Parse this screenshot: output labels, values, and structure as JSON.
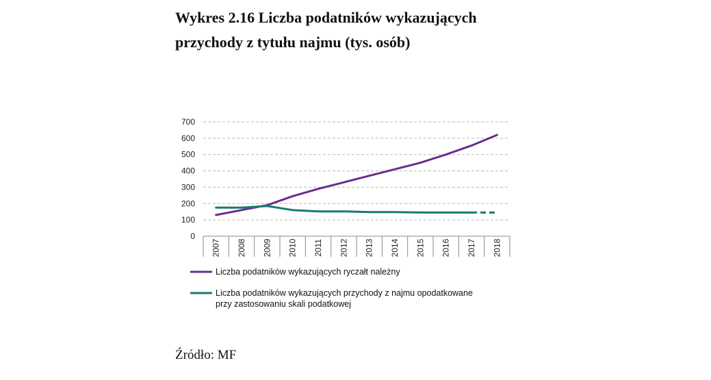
{
  "title": {
    "line1": "Wykres 2.16 Liczba podatników wykazujących",
    "line2": "przychody z tytułu najmu (tys. osób)"
  },
  "source": "Źródło: MF",
  "chart_data": {
    "type": "line",
    "categories": [
      "2007",
      "2008",
      "2009",
      "2010",
      "2011",
      "2012",
      "2013",
      "2014",
      "2015",
      "2016",
      "2017",
      "2018"
    ],
    "ylim": [
      0,
      700
    ],
    "yticks": [
      0,
      100,
      200,
      300,
      400,
      500,
      600,
      700
    ],
    "grid": true,
    "legend_position": "bottom",
    "series": [
      {
        "name": "Liczba podatników wykazujących ryczałt należny",
        "color": "#6b2c8f",
        "values": [
          130,
          160,
          190,
          245,
          290,
          330,
          370,
          410,
          450,
          500,
          555,
          620
        ]
      },
      {
        "name": "Liczba podatników wykazujących przychody z najmu opodatkowane przy zastosowaniu skali podatkowej",
        "name_lines": [
          "Liczba podatników wykazujących przychody z najmu opodatkowane",
          "przy zastosowaniu skali podatkowej"
        ],
        "color": "#1a7a6e",
        "values": [
          175,
          175,
          185,
          160,
          152,
          152,
          148,
          148,
          145,
          145,
          145,
          145
        ],
        "dashed_from_index": 10
      }
    ]
  }
}
